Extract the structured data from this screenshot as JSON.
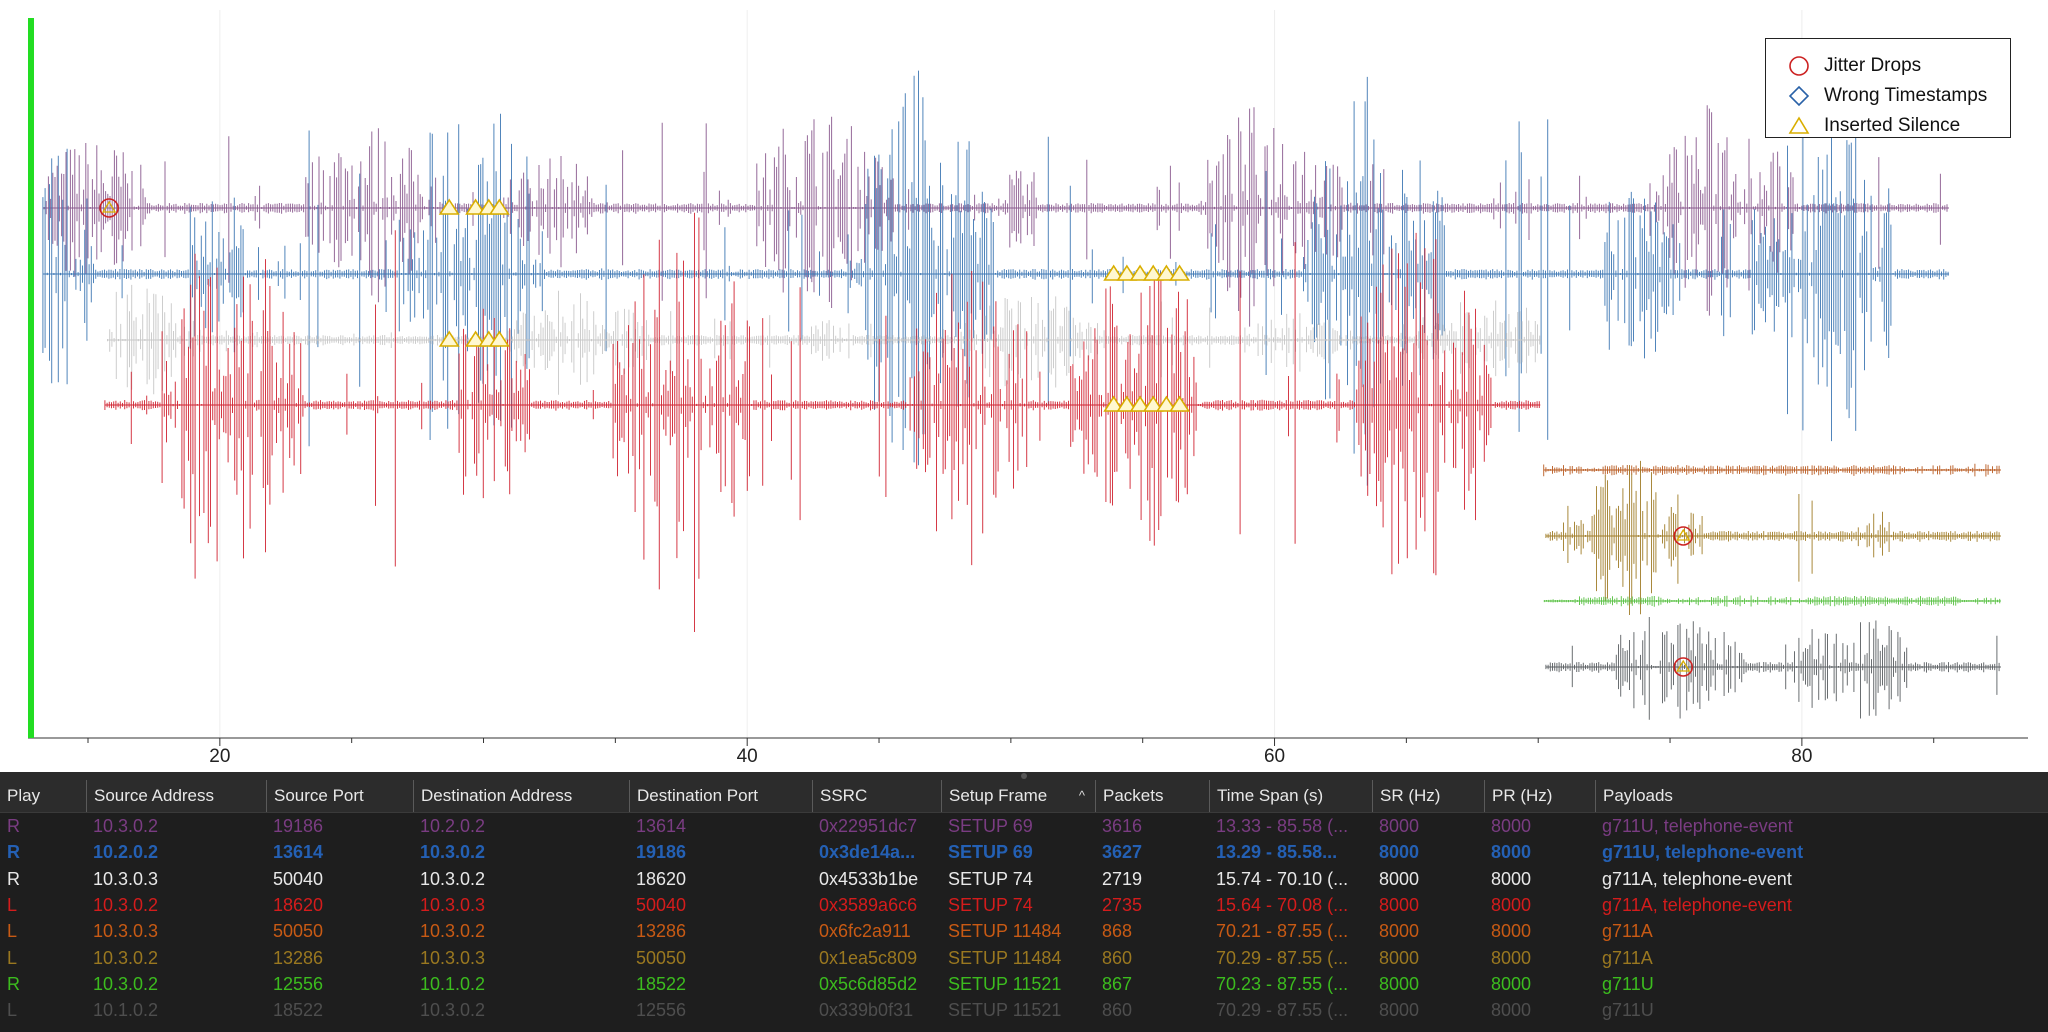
{
  "legend": {
    "items": [
      {
        "label": "Jitter Drops",
        "marker": "circle",
        "color": "#cc2222"
      },
      {
        "label": "Wrong Timestamps",
        "marker": "diamond",
        "color": "#2a62a8"
      },
      {
        "label": "Inserted Silence",
        "marker": "triangle",
        "color": "#d9ae00"
      }
    ]
  },
  "axis": {
    "ticks": [
      "20",
      "40",
      "60",
      "80"
    ],
    "xrange": [
      12.8,
      88.5
    ]
  },
  "playback_cursor": {
    "color": "#22dd22"
  },
  "table": {
    "columns": [
      "Play",
      "Source Address",
      "Source Port",
      "Destination Address",
      "Destination Port",
      "SSRC",
      "Setup Frame",
      "Packets",
      "Time Span (s)",
      "SR (Hz)",
      "PR (Hz)",
      "Payloads"
    ],
    "sort_indicator": "^",
    "rows": [
      {
        "color": "#7a3c82",
        "bold": false,
        "cells": [
          "R",
          "10.3.0.2",
          "19186",
          "10.2.0.2",
          "13614",
          "0x22951dc7",
          "SETUP 69",
          "3616",
          "13.33 - 85.58 (...",
          "8000",
          "8000",
          "g711U, telephone-event"
        ]
      },
      {
        "color": "#2460b4",
        "bold": true,
        "cells": [
          "R",
          "10.2.0.2",
          "13614",
          "10.3.0.2",
          "19186",
          "0x3de14a...",
          "SETUP 69",
          "3627",
          "13.29 - 85.58...",
          "8000",
          "8000",
          "g711U, telephone-event"
        ]
      },
      {
        "color": "#e8e8e8",
        "bold": false,
        "cells": [
          "R",
          "10.3.0.3",
          "50040",
          "10.3.0.2",
          "18620",
          "0x4533b1be",
          "SETUP 74",
          "2719",
          "15.74 - 70.10 (...",
          "8000",
          "8000",
          "g711A, telephone-event"
        ]
      },
      {
        "color": "#d41c1c",
        "bold": false,
        "cells": [
          "L",
          "10.3.0.2",
          "18620",
          "10.3.0.3",
          "50040",
          "0x3589a6c6",
          "SETUP 74",
          "2735",
          "15.64 - 70.08 (...",
          "8000",
          "8000",
          "g711A, telephone-event"
        ]
      },
      {
        "color": "#c85a14",
        "bold": false,
        "cells": [
          "L",
          "10.3.0.3",
          "50050",
          "10.3.0.2",
          "13286",
          "0x6fc2a911",
          "SETUP 11484",
          "868",
          "70.21 - 87.55 (...",
          "8000",
          "8000",
          "g711A"
        ]
      },
      {
        "color": "#9a7820",
        "bold": false,
        "cells": [
          "L",
          "10.3.0.2",
          "13286",
          "10.3.0.3",
          "50050",
          "0x1ea5c809",
          "SETUP 11484",
          "860",
          "70.29 - 87.55 (...",
          "8000",
          "8000",
          "g711A"
        ]
      },
      {
        "color": "#3cbc1e",
        "bold": false,
        "cells": [
          "R",
          "10.3.0.2",
          "12556",
          "10.1.0.2",
          "18522",
          "0x5c6d85d2",
          "SETUP 11521",
          "867",
          "70.23 - 87.55 (...",
          "8000",
          "8000",
          "g711U"
        ]
      },
      {
        "color": "#4e4e4e",
        "bold": false,
        "cells": [
          "L",
          "10.1.0.2",
          "18522",
          "10.3.0.2",
          "12556",
          "0x339b0f31",
          "SETUP 11521",
          "860",
          "70.29 - 87.55 (...",
          "8000",
          "8000",
          "g711U"
        ]
      }
    ]
  },
  "streams": [
    {
      "color": "#8a5a8e",
      "start": 13.33,
      "end": 85.58
    },
    {
      "color": "#3e78b4",
      "start": 13.29,
      "end": 85.58
    },
    {
      "color": "#c8c8c8",
      "start": 15.74,
      "end": 70.1
    },
    {
      "color": "#d02432",
      "start": 15.64,
      "end": 70.08
    },
    {
      "color": "#b85a20",
      "start": 70.21,
      "end": 87.55
    },
    {
      "color": "#a07c28",
      "start": 70.29,
      "end": 87.55
    },
    {
      "color": "#56c040",
      "start": 70.23,
      "end": 87.55
    },
    {
      "color": "#5a5e62",
      "start": 70.29,
      "end": 87.55
    }
  ]
}
